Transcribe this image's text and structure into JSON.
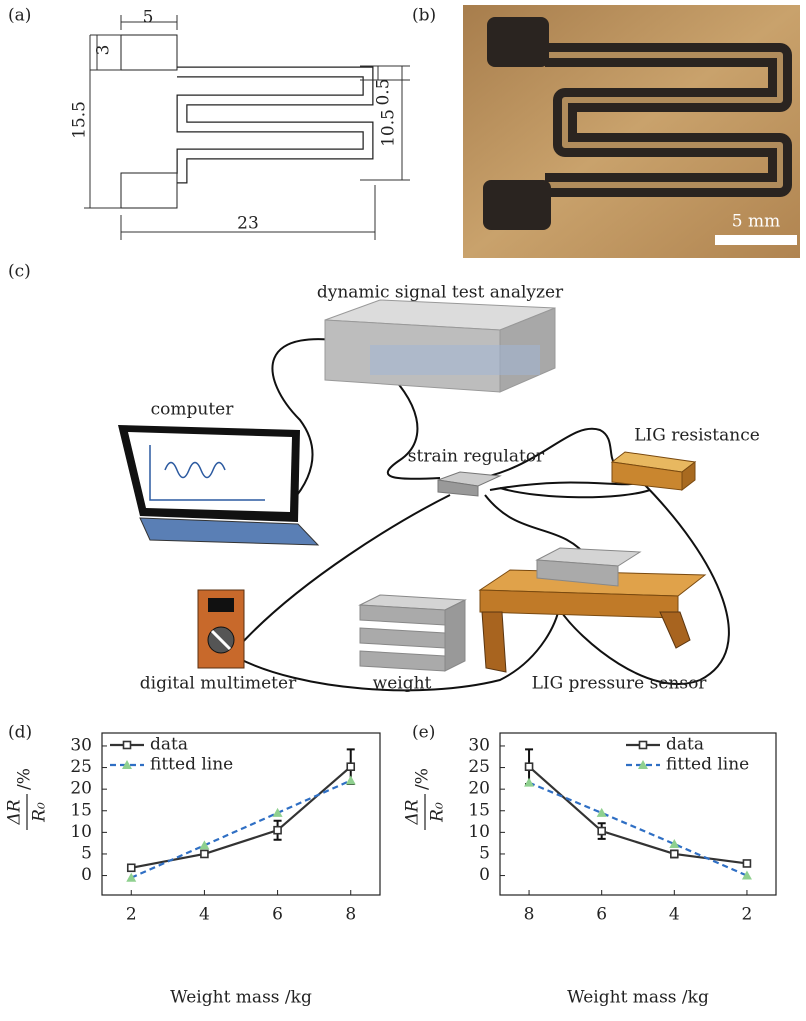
{
  "panels": {
    "a": {
      "label": "(a)",
      "dimensions": [
        "5",
        "3",
        "15.5",
        "0.5",
        "10.5",
        "23"
      ]
    },
    "b": {
      "label": "(b)",
      "scale_bar": "5 mm"
    },
    "c": {
      "label": "(c)",
      "components": [
        "dynamic signal test analyzer",
        "computer",
        "strain regulator",
        "LIG resistance",
        "digital multimeter",
        "weight",
        "LIG pressure sensor"
      ]
    }
  },
  "chart_data": [
    {
      "type": "line",
      "panel_label": "(d)",
      "xlabel": "Weight mass /kg",
      "ylabel": {
        "numerator": "ΔR",
        "denominator": "R₀",
        "unit": "/%"
      },
      "x": [
        2,
        4,
        6,
        8
      ],
      "series": [
        {
          "name": "data",
          "color": "#333333",
          "marker": "square",
          "values": [
            1.8,
            5.0,
            10.5,
            25.2
          ],
          "errors": [
            0.5,
            0.6,
            2.2,
            4.0
          ]
        },
        {
          "name": "fitted line",
          "color": "#2f6fc4",
          "marker_color": "#8fd08f",
          "marker": "triangle",
          "dashed": true,
          "values": [
            -0.5,
            7.0,
            14.5,
            22.0
          ]
        }
      ],
      "xlim": [
        1.2,
        8.8
      ],
      "ylim": [
        -4.5,
        33
      ],
      "xticks": [
        2,
        4,
        6,
        8
      ],
      "yticks": [
        0,
        5,
        10,
        15,
        20,
        25,
        30
      ],
      "legend": "upper left"
    },
    {
      "type": "line",
      "panel_label": "(e)",
      "xlabel": "Weight mass /kg",
      "ylabel": {
        "numerator": "ΔR",
        "denominator": "R₀",
        "unit": "/%"
      },
      "x": [
        8,
        6,
        4,
        2
      ],
      "series": [
        {
          "name": "data",
          "color": "#333333",
          "marker": "square",
          "values": [
            25.2,
            10.3,
            5.0,
            2.8
          ],
          "errors": [
            4.0,
            1.8,
            0.8,
            0.5
          ]
        },
        {
          "name": "fitted line",
          "color": "#2f6fc4",
          "marker_color": "#8fd08f",
          "marker": "triangle",
          "dashed": true,
          "values": [
            21.5,
            14.5,
            7.3,
            0.0
          ]
        }
      ],
      "xlim": [
        8.8,
        1.2
      ],
      "ylim": [
        -4.5,
        33
      ],
      "xticks": [
        8,
        6,
        4,
        2
      ],
      "yticks": [
        0,
        5,
        10,
        15,
        20,
        25,
        30
      ],
      "legend": "upper right"
    }
  ]
}
